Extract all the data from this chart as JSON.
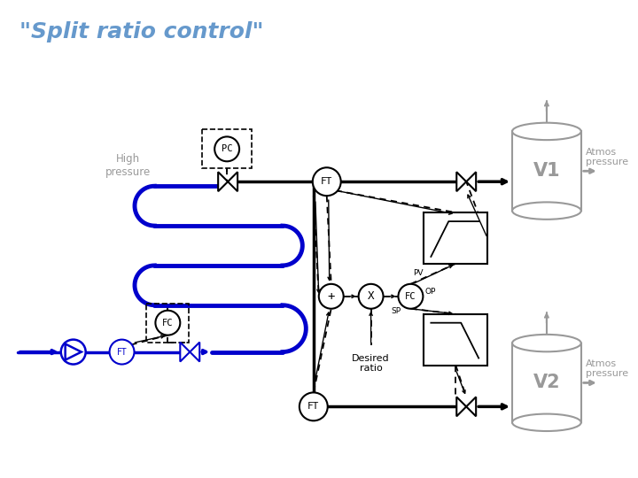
{
  "title": "\"Split ratio control\"",
  "title_color": "#6699CC",
  "title_fontsize": 18,
  "bg_color": "#FFFFFF",
  "pipe_black": "#000000",
  "pipe_blue": "#0000CC",
  "gray": "#999999",
  "dashed_col": "#000000",
  "labels": {
    "PC": "PC",
    "FT_main": "FT",
    "FT_bottom": "FT",
    "FT_left": "FT",
    "FC_left": "FC",
    "FC_mid": "FC",
    "X": "X",
    "plus": "+",
    "V1": "V1",
    "V2": "V2",
    "high_pressure": "High\npressure",
    "atmos1": "Atmos\npressure",
    "atmos2": "Atmos\npressure",
    "PV": "PV",
    "OP": "OP",
    "SP": "SP",
    "desired_ratio": "Desired\nratio"
  },
  "coil_blue": "#0000BB",
  "coil_lw": 3.5,
  "pipe_lw": 2.5,
  "thin_lw": 1.5
}
